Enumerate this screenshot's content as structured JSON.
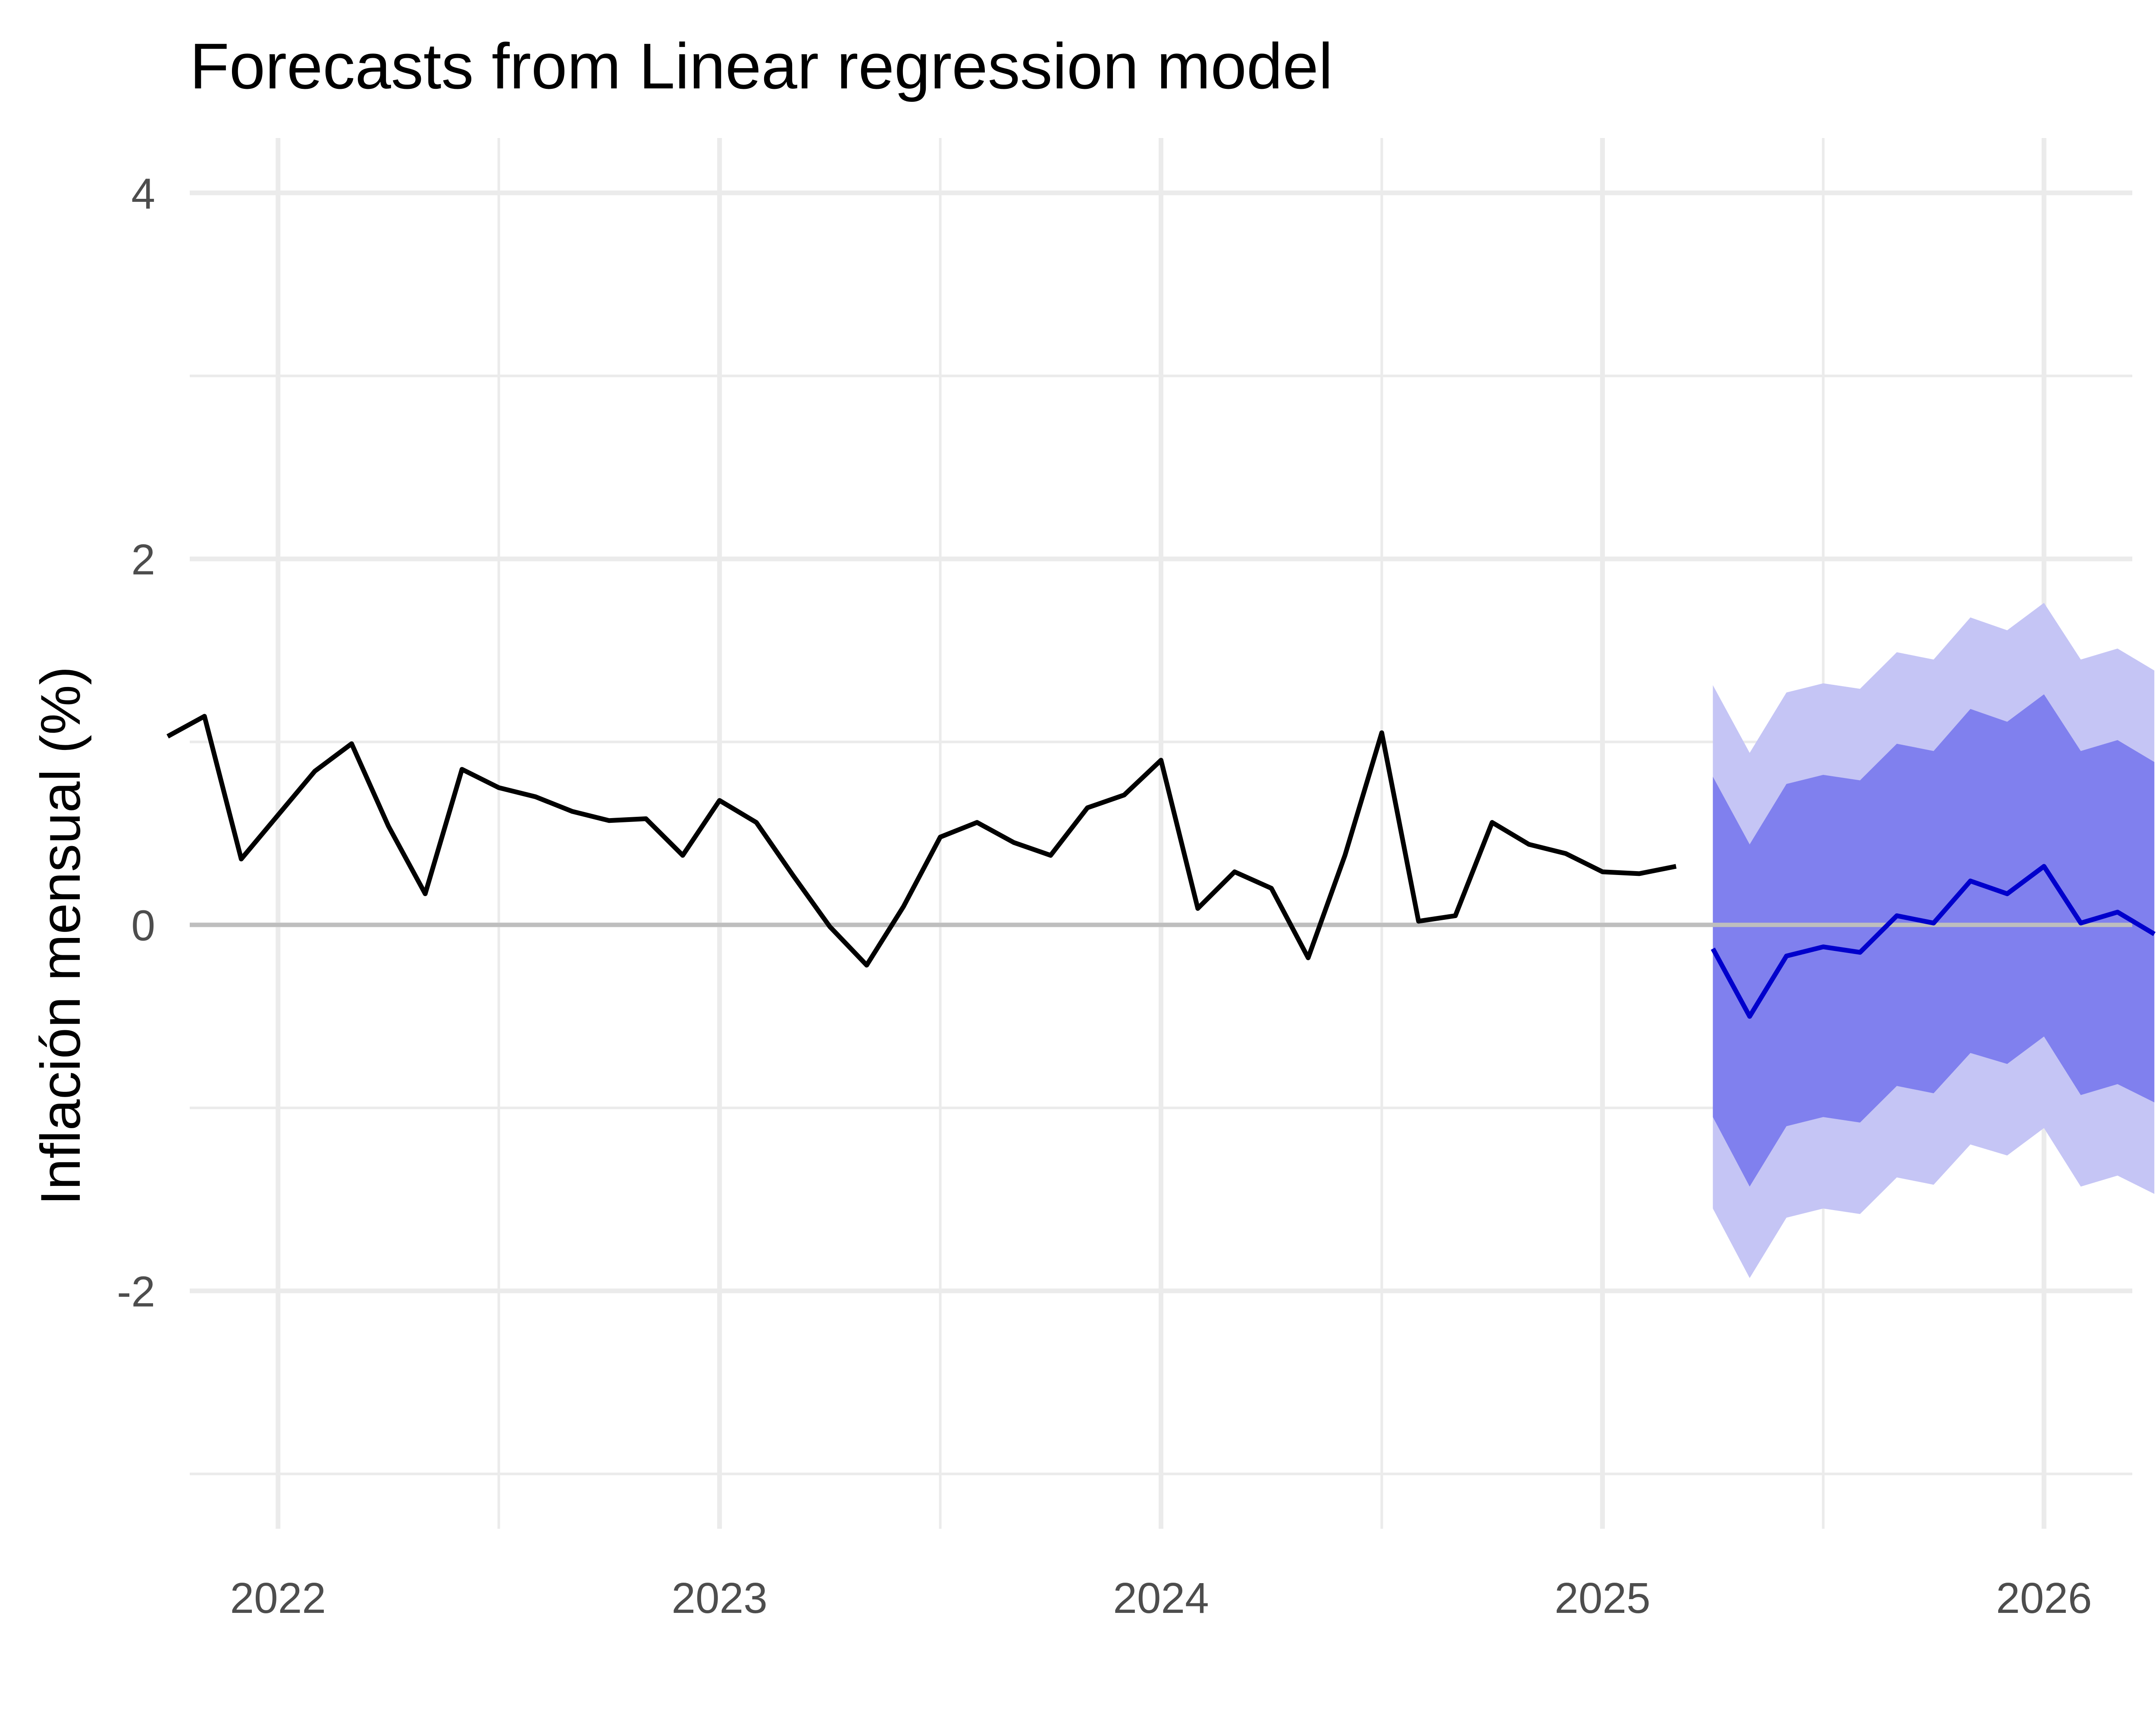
{
  "chart_data": {
    "type": "line",
    "title": "Forecasts from Linear regression model",
    "xlabel": "",
    "ylabel": "Inflación mensual (%)",
    "xlim": [
      2021.8,
      2026.2
    ],
    "ylim": [
      -3.3,
      4.3
    ],
    "x_ticks": [
      2022,
      2023,
      2024,
      2025,
      2026
    ],
    "y_ticks": [
      -2,
      0,
      2,
      4
    ],
    "x_tick_labels": [
      "2022",
      "2023",
      "2024",
      "2025",
      "2026"
    ],
    "y_tick_labels": [
      "-2",
      "0",
      "2",
      "4"
    ],
    "grid": true,
    "legend": "none",
    "colors": {
      "observed": "#000000",
      "forecast": "#0000cc",
      "band_80": "#8080ee",
      "band_95": "#c5c5f5",
      "zero_line": "#bebebe",
      "grid": "#ebebeb"
    },
    "series": [
      {
        "x": [
          "2021-10",
          "2021-11",
          "2021-12",
          "2022-01",
          "2022-02",
          "2022-03",
          "2022-04",
          "2022-05",
          "2022-06",
          "2022-07",
          "2022-08",
          "2022-09",
          "2022-10",
          "2022-11",
          "2022-12",
          "2023-01",
          "2023-02",
          "2023-03",
          "2023-04",
          "2023-05",
          "2023-06",
          "2023-07",
          "2023-08",
          "2023-09",
          "2023-10",
          "2023-11",
          "2023-12",
          "2024-01",
          "2024-02",
          "2024-03",
          "2024-04",
          "2024-05",
          "2024-06",
          "2024-07",
          "2024-08",
          "2024-09",
          "2024-10",
          "2024-11",
          "2024-12",
          "2025-01",
          "2025-02",
          "2025-03"
        ],
        "values": [
          1.03,
          1.14,
          0.36,
          0.6,
          0.84,
          0.99,
          0.54,
          0.17,
          0.85,
          0.75,
          0.7,
          0.62,
          0.57,
          0.58,
          0.38,
          0.68,
          0.56,
          0.27,
          -0.01,
          -0.22,
          0.1,
          0.48,
          0.56,
          0.45,
          0.38,
          0.64,
          0.71,
          0.9,
          0.09,
          0.29,
          0.2,
          -0.18,
          0.38,
          1.05,
          0.02,
          0.05,
          0.56,
          0.44,
          0.39,
          0.29,
          0.28,
          0.32
        ]
      },
      {
        "x": [
          "2025-04",
          "2025-05",
          "2025-06",
          "2025-07",
          "2025-08",
          "2025-09",
          "2025-10",
          "2025-11",
          "2025-12",
          "2026-01",
          "2026-02",
          "2026-03",
          "2026-04"
        ],
        "values": [
          -0.13,
          -0.5,
          -0.17,
          -0.12,
          -0.15,
          0.05,
          0.01,
          0.24,
          0.17,
          0.32,
          0.01,
          0.07,
          -0.05
        ],
        "lower_80": [
          -1.05,
          -1.43,
          -1.1,
          -1.05,
          -1.08,
          -0.88,
          -0.92,
          -0.7,
          -0.76,
          -0.61,
          -0.93,
          -0.87,
          -0.97
        ],
        "upper_80": [
          0.81,
          0.44,
          0.77,
          0.82,
          0.79,
          0.99,
          0.95,
          1.18,
          1.11,
          1.26,
          0.95,
          1.01,
          0.89
        ],
        "lower_95": [
          -1.55,
          -1.93,
          -1.6,
          -1.55,
          -1.58,
          -1.38,
          -1.42,
          -1.2,
          -1.26,
          -1.11,
          -1.43,
          -1.37,
          -1.47
        ],
        "upper_95": [
          1.31,
          0.94,
          1.27,
          1.32,
          1.29,
          1.49,
          1.45,
          1.68,
          1.61,
          1.76,
          1.45,
          1.51,
          1.39
        ]
      }
    ]
  }
}
